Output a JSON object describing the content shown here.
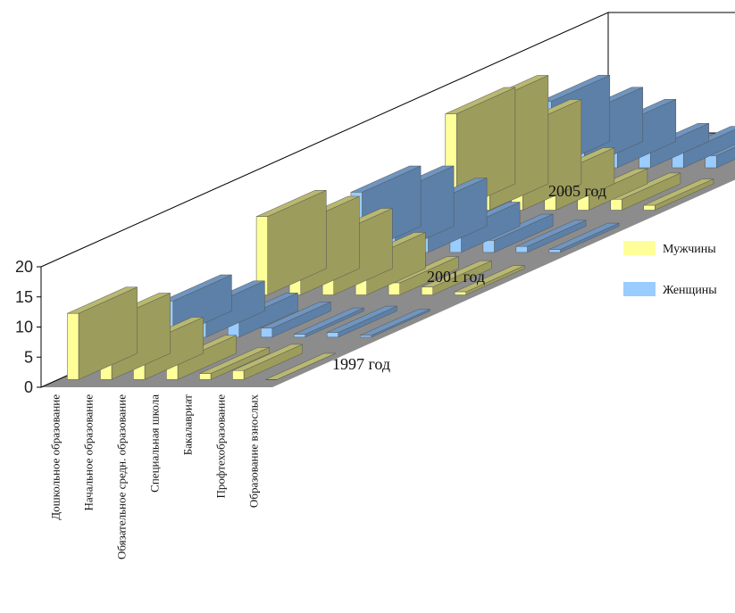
{
  "chart_data": {
    "type": "bar",
    "subtype": "3d-grouped-bar",
    "title": "",
    "xlabel": "",
    "ylabel": "",
    "ylim": [
      0,
      20
    ],
    "yticks": [
      "0",
      "5",
      "10",
      "15",
      "20"
    ],
    "categories": [
      "Дошкольное образование",
      "Начальное образование",
      "Обязательное средн. образование",
      "Специальная школа",
      "Бакалавриат",
      "Профтехобразование",
      "Образование взнослых"
    ],
    "depth_labels": [
      "1997 год",
      "2001 год",
      "2005 год"
    ],
    "legend": [
      {
        "name": "Мужчины",
        "color": "#ffff99"
      },
      {
        "name": "Женщины",
        "color": "#99ccff"
      }
    ],
    "series": [
      {
        "name": "Мужчины",
        "year": "1997 год",
        "values": [
          11,
          10,
          6,
          3,
          1,
          1.5,
          0
        ]
      },
      {
        "name": "Женщины",
        "year": "1997 год",
        "values": [
          6,
          5,
          3,
          1.5,
          0.5,
          0.8,
          0.3
        ]
      },
      {
        "name": "Мужчины",
        "year": "2001 год",
        "values": [
          13,
          12,
          10,
          6,
          2,
          1.3,
          0.5
        ]
      },
      {
        "name": "Женщины",
        "year": "2001 год",
        "values": [
          10,
          10,
          8,
          4,
          2,
          1,
          0.5
        ]
      },
      {
        "name": "Мужчины",
        "year": "2005 год",
        "values": [
          16,
          18,
          14,
          6,
          2.5,
          1.8,
          0.8
        ]
      },
      {
        "name": "Женщины",
        "year": "2005 год",
        "values": [
          11,
          9,
          7,
          3,
          2.5,
          2,
          1
        ]
      }
    ],
    "grid": false,
    "legend_position": "right"
  }
}
